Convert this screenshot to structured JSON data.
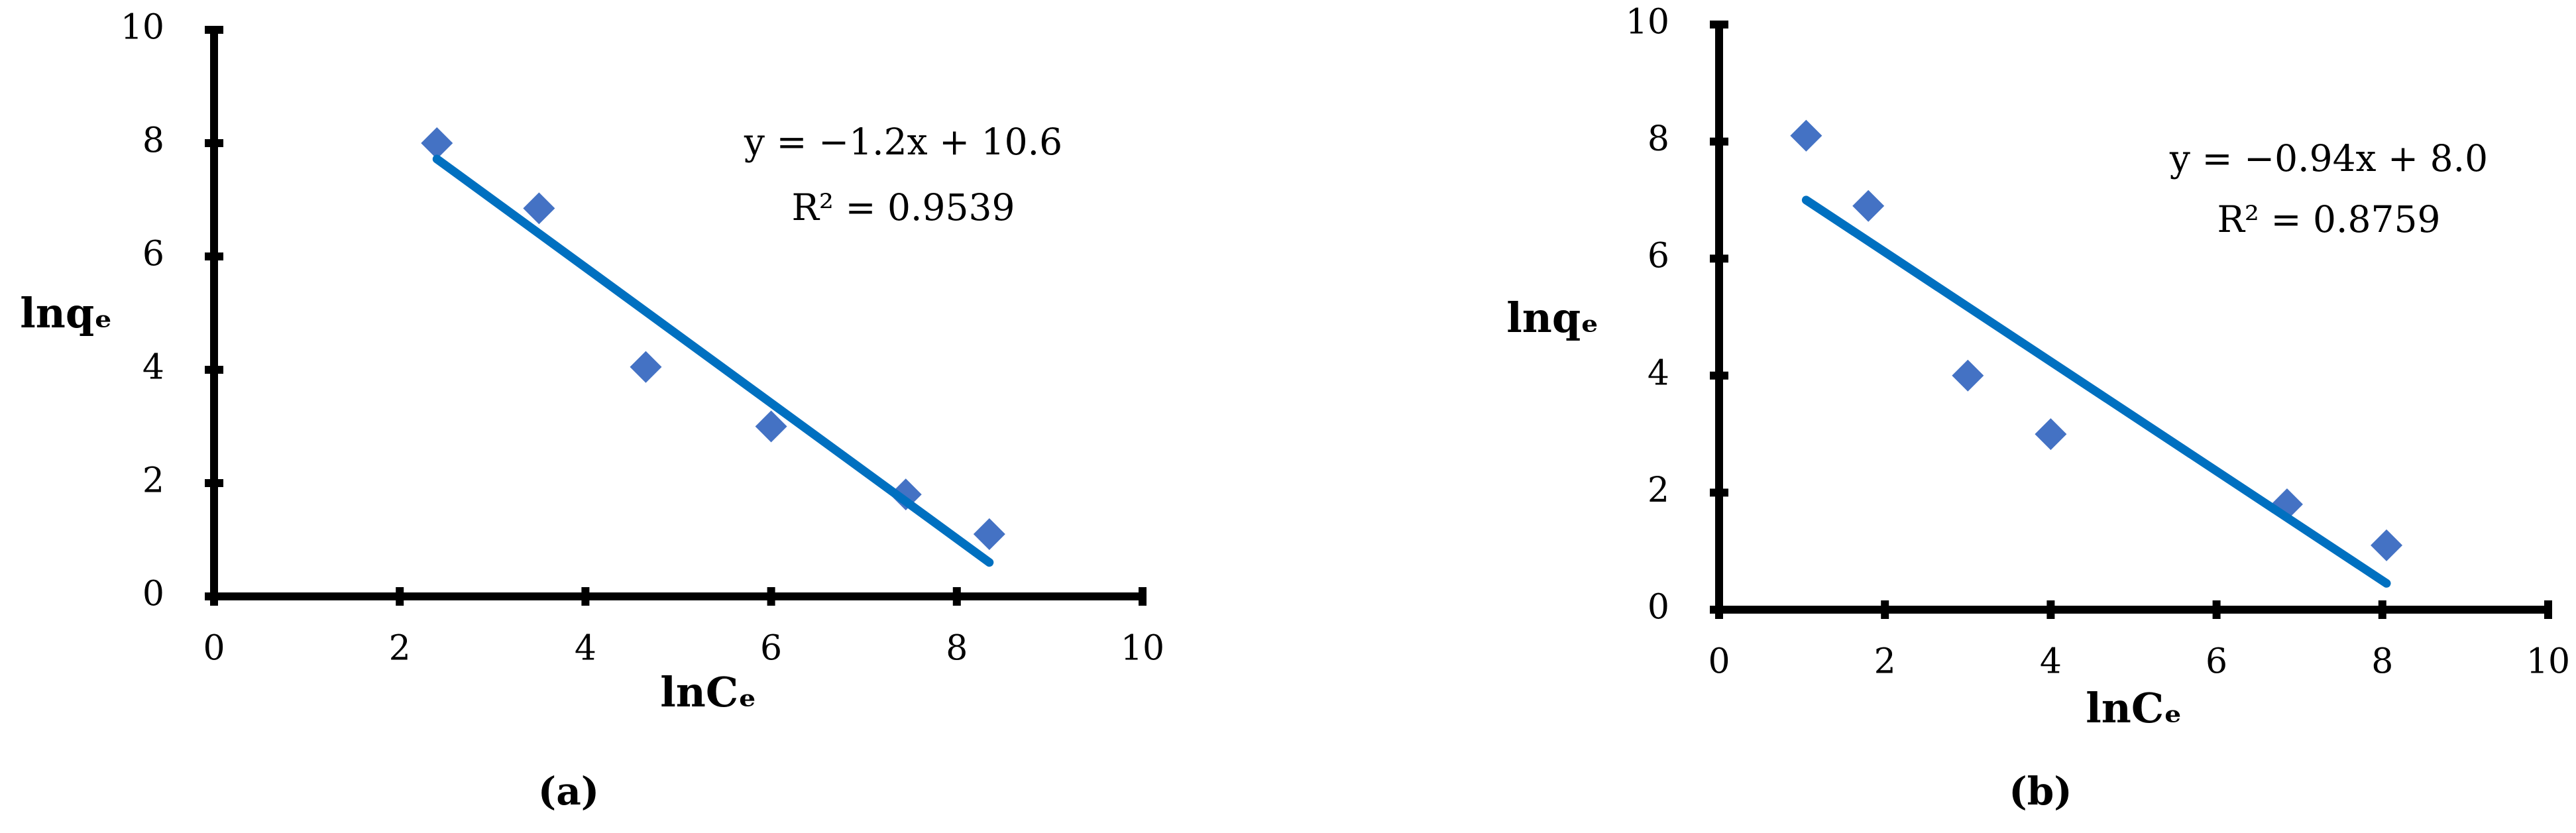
{
  "chart_data": [
    {
      "type": "scatter",
      "x_label": "lnCₑ",
      "y_label": "lnqₑ",
      "x": [
        2.4,
        3.5,
        4.65,
        6.0,
        7.45,
        8.35
      ],
      "values": [
        8.0,
        6.85,
        4.05,
        3.0,
        1.8,
        1.1
      ],
      "color": "#4472c4",
      "trendline": {
        "x": [
          2.4,
          8.35
        ],
        "y": [
          7.72,
          0.6
        ],
        "color": "#0070c0"
      },
      "annotations": [
        "y = −1.2x + 10.6",
        "R² = 0.9539"
      ],
      "caption": "(a)",
      "xlim": [
        0,
        10
      ],
      "xticks": [
        0,
        2,
        4,
        6,
        8,
        10
      ],
      "ylim": [
        0,
        10
      ],
      "yticks": [
        0,
        2,
        4,
        6,
        8,
        10
      ]
    },
    {
      "type": "scatter",
      "x_label": "lnCₑ",
      "y_label": "lnqₑ",
      "x": [
        1.05,
        1.8,
        3.0,
        4.0,
        6.85,
        8.05
      ],
      "values": [
        8.1,
        6.9,
        4.0,
        3.0,
        1.8,
        1.1
      ],
      "color": "#4472c4",
      "trendline": {
        "x": [
          1.05,
          8.05
        ],
        "y": [
          7.0,
          0.45
        ],
        "color": "#0070c0"
      },
      "annotations": [
        "y = −0.94x + 8.0",
        "R² = 0.8759"
      ],
      "caption": "(b)",
      "xlim": [
        0,
        10
      ],
      "xticks": [
        0,
        2,
        4,
        6,
        8,
        10
      ],
      "ylim": [
        0,
        10
      ],
      "yticks": [
        0,
        2,
        4,
        6,
        8,
        10
      ]
    }
  ]
}
